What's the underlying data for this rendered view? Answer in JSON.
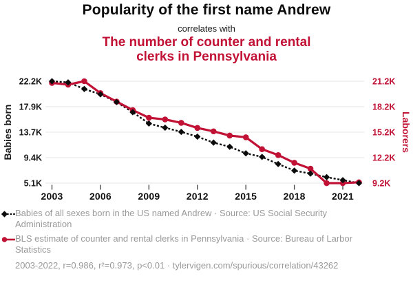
{
  "header": {
    "title": "Popularity of the first name Andrew",
    "connector": "correlates with",
    "subtitle": "The number of counter and rental clerks in Pennsylvania"
  },
  "palette": {
    "black": "#0b0b0b",
    "red": "#c11236",
    "grid": "#e4e4e4",
    "tick": "#4a4a4a",
    "muted_text": "#999999"
  },
  "chart_data": {
    "type": "line",
    "units": "thousands",
    "x": [
      2003,
      2004,
      2005,
      2006,
      2007,
      2008,
      2009,
      2010,
      2011,
      2012,
      2013,
      2014,
      2015,
      2016,
      2017,
      2018,
      2019,
      2020,
      2021,
      2022
    ],
    "x_ticks": [
      2003,
      2006,
      2009,
      2012,
      2015,
      2018,
      2021
    ],
    "grid": true,
    "series": [
      {
        "name": "Babies of all sexes born in the US named Andrew",
        "axis": "left",
        "color": "#0b0b0b",
        "line_style": "dashed",
        "marker": "diamond",
        "values": [
          22.2,
          22.0,
          20.9,
          20.0,
          18.7,
          17.0,
          15.1,
          14.4,
          13.7,
          12.9,
          11.9,
          11.2,
          10.1,
          9.5,
          8.3,
          7.2,
          6.7,
          6.1,
          5.6,
          5.1
        ]
      },
      {
        "name": "BLS estimate of counter and rental clerks in Pennsylvania",
        "axis": "right",
        "color": "#c11236",
        "line_style": "solid",
        "marker": "circle",
        "values": [
          21.0,
          20.8,
          21.2,
          19.8,
          18.8,
          17.8,
          16.9,
          16.7,
          16.3,
          15.7,
          15.3,
          14.8,
          14.6,
          13.2,
          12.5,
          11.6,
          10.9,
          9.2,
          9.2,
          9.3
        ]
      }
    ],
    "left_axis": {
      "label": "Babies born",
      "min": 5.1,
      "max": 22.2,
      "ticks": [
        "22.2K",
        "17.9K",
        "13.7K",
        "9.4K",
        "5.1K"
      ],
      "color": "#1a1a1a"
    },
    "right_axis": {
      "label": "Laborers",
      "min": 9.2,
      "max": 21.2,
      "ticks": [
        "21.2K",
        "18.2K",
        "15.2K",
        "12.2K",
        "9.2K"
      ],
      "color": "#c11236"
    }
  },
  "legend": {
    "items": [
      {
        "marker": "black-diamond-dashed-line",
        "label": "Babies of all sexes born in the US named Andrew · Source: US Social Security Administration"
      },
      {
        "marker": "red-circle-solid-line",
        "label": "BLS estimate of counter and rental clerks in Pennsylvania · Source: Bureau of Larbor Statistics"
      }
    ]
  },
  "footer": {
    "stats_line": "2003-2022, r=0.986, r²=0.973, p<0.01 · tylervigen.com/spurious/correlation/43262"
  }
}
